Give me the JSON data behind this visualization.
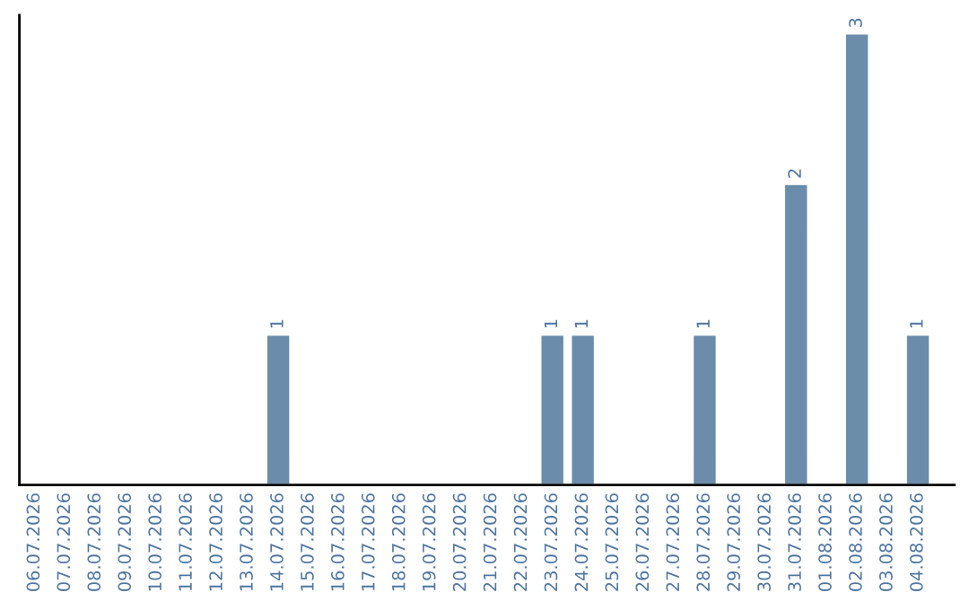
{
  "chart_data": {
    "type": "bar",
    "categories": [
      "06.07.2026",
      "07.07.2026",
      "08.07.2026",
      "09.07.2026",
      "10.07.2026",
      "11.07.2026",
      "12.07.2026",
      "13.07.2026",
      "14.07.2026",
      "15.07.2026",
      "16.07.2026",
      "17.07.2026",
      "18.07.2026",
      "19.07.2026",
      "20.07.2026",
      "21.07.2026",
      "22.07.2026",
      "23.07.2026",
      "24.07.2026",
      "25.07.2026",
      "26.07.2026",
      "27.07.2026",
      "28.07.2026",
      "29.07.2026",
      "30.07.2026",
      "31.07.2026",
      "01.08.2026",
      "02.08.2026",
      "03.08.2026",
      "04.08.2026"
    ],
    "values": [
      null,
      null,
      null,
      null,
      null,
      null,
      null,
      null,
      1,
      null,
      null,
      null,
      null,
      null,
      null,
      null,
      null,
      1,
      1,
      null,
      null,
      null,
      1,
      null,
      null,
      2,
      null,
      3,
      null,
      1
    ],
    "value_labels": [
      null,
      null,
      null,
      null,
      null,
      null,
      null,
      null,
      "1",
      null,
      null,
      null,
      null,
      null,
      null,
      null,
      null,
      "1",
      "1",
      null,
      null,
      null,
      "1",
      null,
      null,
      "2",
      null,
      "3",
      null,
      "1"
    ],
    "color": "#6b8cab",
    "tick_labels": "x",
    "grid": false,
    "legend": false
  }
}
